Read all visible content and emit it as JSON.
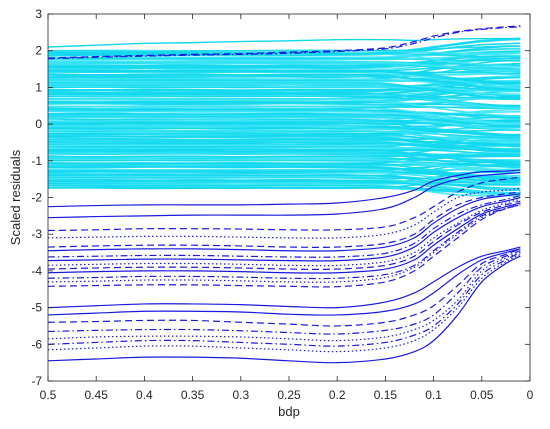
{
  "chart_data": {
    "type": "line",
    "xlabel": "bdp",
    "ylabel": "Scaled residuals",
    "xlim": [
      0.5,
      0
    ],
    "ylim": [
      -7,
      3
    ],
    "x_reversed": true,
    "grid": false,
    "legend": "none",
    "x_ticks": [
      "0.5",
      "0.45",
      "0.4",
      "0.35",
      "0.3",
      "0.25",
      "0.2",
      "0.15",
      "0.1",
      "0.05",
      "0"
    ],
    "y_ticks": [
      "-7",
      "-6",
      "-5",
      "-4",
      "-3",
      "-2",
      "-1",
      "0",
      "1",
      "2",
      "3"
    ],
    "colors": {
      "normal": "#12d8ee",
      "normal_light": "#40e6f6",
      "outlier": "#1a1ae0"
    },
    "x_samples": [
      0.5,
      0.45,
      0.4,
      0.35,
      0.3,
      0.25,
      0.2,
      0.15,
      0.12,
      0.1,
      0.075,
      0.05,
      0.025,
      0.01
    ],
    "outlier_series": [
      {
        "style": "solid",
        "y": [
          -6.45,
          -6.4,
          -6.35,
          -6.35,
          -6.38,
          -6.45,
          -6.5,
          -6.4,
          -6.2,
          -5.9,
          -5.2,
          -4.3,
          -3.8,
          -3.6
        ]
      },
      {
        "style": "dotted",
        "y": [
          -6.15,
          -6.1,
          -6.05,
          -6.05,
          -6.1,
          -6.15,
          -6.2,
          -6.1,
          -5.9,
          -5.6,
          -5.0,
          -4.2,
          -3.75,
          -3.55
        ]
      },
      {
        "style": "dashdot",
        "y": [
          -6.0,
          -5.95,
          -5.9,
          -5.9,
          -5.95,
          -6.0,
          -6.05,
          -5.95,
          -5.75,
          -5.5,
          -4.9,
          -4.1,
          -3.7,
          -3.5
        ]
      },
      {
        "style": "dotted",
        "y": [
          -5.85,
          -5.8,
          -5.78,
          -5.78,
          -5.8,
          -5.85,
          -5.9,
          -5.8,
          -5.6,
          -5.35,
          -4.8,
          -4.0,
          -3.65,
          -3.5
        ]
      },
      {
        "style": "dashdot",
        "y": [
          -5.65,
          -5.62,
          -5.6,
          -5.6,
          -5.63,
          -5.68,
          -5.72,
          -5.62,
          -5.45,
          -5.2,
          -4.6,
          -3.9,
          -3.6,
          -3.45
        ]
      },
      {
        "style": "dashed",
        "y": [
          -5.4,
          -5.38,
          -5.35,
          -5.35,
          -5.4,
          -5.45,
          -5.5,
          -5.4,
          -5.2,
          -4.95,
          -4.4,
          -3.8,
          -3.55,
          -3.4
        ]
      },
      {
        "style": "solid",
        "y": [
          -5.2,
          -5.15,
          -5.1,
          -5.1,
          -5.12,
          -5.18,
          -5.2,
          -5.1,
          -4.9,
          -4.6,
          -4.1,
          -3.7,
          -3.5,
          -3.4
        ]
      },
      {
        "style": "solid",
        "y": [
          -5.0,
          -4.95,
          -4.9,
          -4.9,
          -4.92,
          -4.97,
          -5.0,
          -4.85,
          -4.6,
          -4.3,
          -3.9,
          -3.6,
          -3.45,
          -3.35
        ]
      },
      {
        "style": "dashed",
        "y": [
          -4.42,
          -4.4,
          -4.38,
          -4.38,
          -4.4,
          -4.42,
          -4.43,
          -4.3,
          -4.0,
          -3.6,
          -3.1,
          -2.6,
          -2.3,
          -2.2
        ]
      },
      {
        "style": "dotted",
        "y": [
          -4.3,
          -4.28,
          -4.25,
          -4.25,
          -4.27,
          -4.3,
          -4.3,
          -4.18,
          -3.9,
          -3.5,
          -3.0,
          -2.55,
          -2.3,
          -2.2
        ]
      },
      {
        "style": "dashdot",
        "y": [
          -4.2,
          -4.18,
          -4.15,
          -4.15,
          -4.17,
          -4.2,
          -4.2,
          -4.1,
          -3.85,
          -3.45,
          -2.95,
          -2.5,
          -2.3,
          -2.2
        ]
      },
      {
        "style": "solid",
        "y": [
          -4.05,
          -4.02,
          -4.0,
          -4.0,
          -4.02,
          -4.05,
          -4.05,
          -3.95,
          -3.7,
          -3.3,
          -2.85,
          -2.45,
          -2.25,
          -2.15
        ]
      },
      {
        "style": "dashed",
        "y": [
          -3.95,
          -3.92,
          -3.9,
          -3.9,
          -3.92,
          -3.95,
          -3.95,
          -3.85,
          -3.6,
          -3.2,
          -2.75,
          -2.4,
          -2.2,
          -2.1
        ]
      },
      {
        "style": "dotted",
        "y": [
          -3.85,
          -3.82,
          -3.8,
          -3.8,
          -3.82,
          -3.85,
          -3.85,
          -3.75,
          -3.5,
          -3.1,
          -2.7,
          -2.35,
          -2.15,
          -2.05
        ]
      },
      {
        "style": "solid",
        "y": [
          -3.72,
          -3.7,
          -3.68,
          -3.68,
          -3.7,
          -3.72,
          -3.72,
          -3.62,
          -3.35,
          -2.95,
          -2.55,
          -2.25,
          -2.1,
          -2.0
        ]
      },
      {
        "style": "dashdot",
        "y": [
          -3.62,
          -3.6,
          -3.58,
          -3.58,
          -3.6,
          -3.62,
          -3.62,
          -3.52,
          -3.25,
          -2.85,
          -2.45,
          -2.2,
          -2.05,
          -1.95
        ]
      },
      {
        "style": "solid",
        "y": [
          -3.45,
          -3.42,
          -3.4,
          -3.4,
          -3.42,
          -3.45,
          -3.45,
          -3.35,
          -3.1,
          -2.7,
          -2.3,
          -2.05,
          -1.95,
          -1.9
        ]
      },
      {
        "style": "dashed",
        "y": [
          -3.35,
          -3.32,
          -3.3,
          -3.3,
          -3.32,
          -3.35,
          -3.35,
          -3.25,
          -3.0,
          -2.6,
          -2.2,
          -2.0,
          -1.9,
          -1.85
        ]
      },
      {
        "style": "dotted",
        "y": [
          -3.1,
          -3.08,
          -3.06,
          -3.06,
          -3.08,
          -3.1,
          -3.1,
          -3.0,
          -2.75,
          -2.4,
          -2.0,
          -1.85,
          -1.8,
          -1.75
        ]
      },
      {
        "style": "dashed",
        "y": [
          -2.9,
          -2.88,
          -2.85,
          -2.85,
          -2.86,
          -2.88,
          -2.88,
          -2.8,
          -2.55,
          -2.25,
          -1.85,
          -1.6,
          -1.5,
          -1.45
        ]
      },
      {
        "style": "solid",
        "y": [
          -2.55,
          -2.52,
          -2.5,
          -2.48,
          -2.48,
          -2.48,
          -2.45,
          -2.3,
          -2.0,
          -1.7,
          -1.5,
          -1.4,
          -1.35,
          -1.32
        ]
      },
      {
        "style": "solid",
        "y": [
          -2.25,
          -2.22,
          -2.2,
          -2.2,
          -2.2,
          -2.18,
          -2.15,
          -2.0,
          -1.8,
          -1.55,
          -1.4,
          -1.3,
          -1.28,
          -1.25
        ]
      },
      {
        "style": "dashdot",
        "y": [
          1.78,
          1.82,
          1.85,
          1.88,
          1.9,
          1.93,
          1.98,
          2.05,
          2.2,
          2.35,
          2.5,
          2.58,
          2.63,
          2.65
        ]
      },
      {
        "style": "dashed",
        "y": [
          1.8,
          1.84,
          1.87,
          1.9,
          1.92,
          1.96,
          2.0,
          2.08,
          2.25,
          2.4,
          2.52,
          2.6,
          2.65,
          2.68
        ]
      }
    ]
  }
}
